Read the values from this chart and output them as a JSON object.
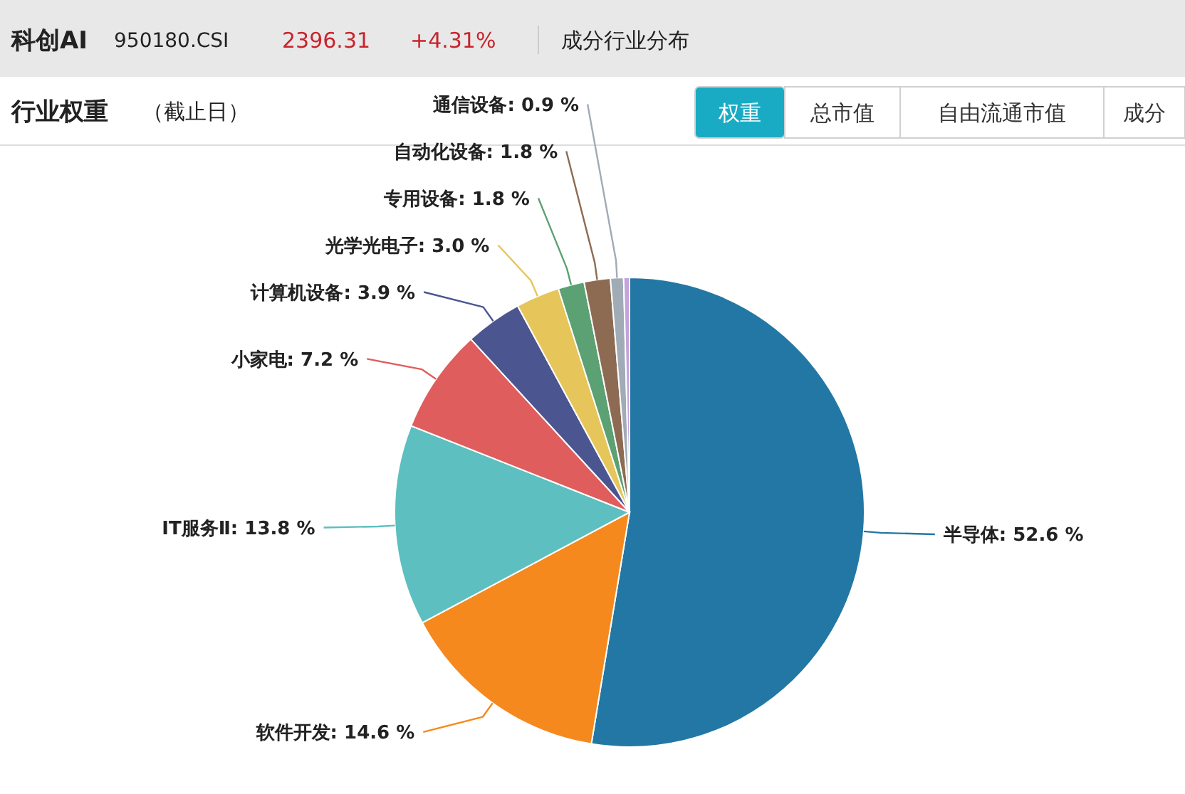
{
  "chart_data": {
    "type": "pie",
    "title": "行业权重",
    "subtitle": "（截止日）",
    "annotations": [
      "科创AI",
      "950180.CSI",
      "2396.31",
      "+4.31%",
      "成分行业分布",
      "权重",
      "总市值",
      "自由流通市值",
      "成分"
    ],
    "categories": [
      "半导体",
      "软件开发",
      "IT服务Ⅱ",
      "小家电",
      "计算机设备",
      "光学光电子",
      "专用设备",
      "自动化设备",
      "通信设备",
      null
    ],
    "values": [
      52.6,
      14.6,
      13.8,
      7.2,
      3.9,
      3.0,
      1.8,
      1.8,
      0.9,
      0.4
    ],
    "value_labels": [
      "52.6 %",
      "14.6 %",
      "13.8 %",
      "7.2 %",
      "3.9 %",
      "3.0 %",
      "1.8 %",
      "1.8 %",
      "0.9 %",
      null
    ],
    "colors": [
      "#2377a4",
      "#f5891d",
      "#5dbfbf",
      "#e05d5d",
      "#4b5590",
      "#e6c55a",
      "#5ba173",
      "#8d6b52",
      "#a1abb6",
      "#c2a3dc"
    ]
  }
}
